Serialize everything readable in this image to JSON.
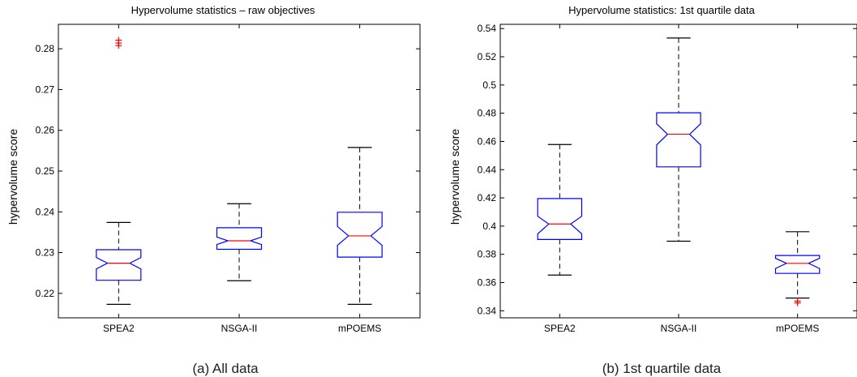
{
  "chart_data": [
    {
      "type": "box",
      "title": "Hypervolume statistics – raw objectives",
      "caption": "(a) All data",
      "xlabel": "",
      "ylabel": "hypervolume score",
      "ylim": [
        0.214,
        0.286
      ],
      "yticks": [
        0.22,
        0.23,
        0.24,
        0.25,
        0.26,
        0.27,
        0.28
      ],
      "ytick_labels": [
        "0.22",
        "0.23",
        "0.24",
        "0.25",
        "0.26",
        "0.27",
        "0.28"
      ],
      "categories": [
        "SPEA2",
        "NSGA-II",
        "mPOEMS"
      ],
      "notched": true,
      "boxes": [
        {
          "whisker_low": 0.2173,
          "q1": 0.2232,
          "median": 0.2274,
          "q3": 0.2307,
          "whisker_high": 0.2374,
          "notch_low": 0.226,
          "notch_high": 0.2288,
          "outliers": [
            0.2808,
            0.2814,
            0.2821
          ]
        },
        {
          "whisker_low": 0.2231,
          "q1": 0.2308,
          "median": 0.2329,
          "q3": 0.2361,
          "whisker_high": 0.242,
          "notch_low": 0.232,
          "notch_high": 0.2338,
          "outliers": []
        },
        {
          "whisker_low": 0.2173,
          "q1": 0.2289,
          "median": 0.2341,
          "q3": 0.2399,
          "whisker_high": 0.2558,
          "notch_low": 0.2318,
          "notch_high": 0.2364,
          "outliers": []
        }
      ]
    },
    {
      "type": "box",
      "title": "Hypervolume statistics: 1st quartile data",
      "caption": "(b) 1st quartile data",
      "xlabel": "",
      "ylabel": "hypervolume score",
      "ylim": [
        0.335,
        0.543
      ],
      "yticks": [
        0.34,
        0.36,
        0.38,
        0.4,
        0.42,
        0.44,
        0.46,
        0.48,
        0.5,
        0.52,
        0.54
      ],
      "ytick_labels": [
        "0.34",
        "0.36",
        "0.38",
        "0.4",
        "0.42",
        "0.44",
        "0.46",
        "0.48",
        "0.5",
        "0.52",
        "0.54"
      ],
      "categories": [
        "SPEA2",
        "NSGA-II",
        "mPOEMS"
      ],
      "notched": true,
      "boxes": [
        {
          "whisker_low": 0.3653,
          "q1": 0.3905,
          "median": 0.4015,
          "q3": 0.4195,
          "whisker_high": 0.4578,
          "notch_low": 0.3945,
          "notch_high": 0.407,
          "outliers": []
        },
        {
          "whisker_low": 0.3893,
          "q1": 0.442,
          "median": 0.4651,
          "q3": 0.4803,
          "whisker_high": 0.5333,
          "notch_low": 0.4575,
          "notch_high": 0.4725,
          "outliers": []
        },
        {
          "whisker_low": 0.349,
          "q1": 0.3665,
          "median": 0.3736,
          "q3": 0.3792,
          "whisker_high": 0.396,
          "notch_low": 0.37,
          "notch_high": 0.3772,
          "outliers": [
            0.3455,
            0.3468
          ]
        }
      ]
    }
  ],
  "colors": {
    "box": "#0000ff",
    "median": "#ff0000",
    "outlier": "#ff0000",
    "whisker": "#000000",
    "axes": "#000000"
  }
}
